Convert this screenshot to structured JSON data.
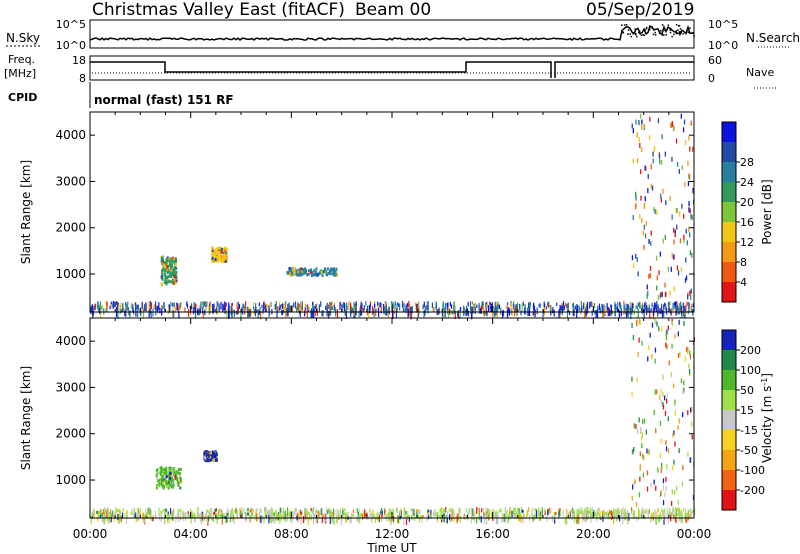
{
  "header": {
    "title": "Christmas Valley East (fitACF)",
    "beam": "Beam 00",
    "date": "05/Sep/2019"
  },
  "summary": {
    "nsky_label": "N.Sky",
    "nsearch_label": "N.Search",
    "count_ticks": [
      "10^5",
      "10^0"
    ],
    "freq_label": "Freq.",
    "freq_unit": "[MHz]",
    "freq_ticks": [
      "18",
      "8"
    ],
    "nave_label": "Nave",
    "nave_ticks": [
      "60",
      "0"
    ],
    "cpid_label": "CPID",
    "cpid_text": "normal (fast) 151 RF"
  },
  "axes": {
    "ylabel": "Slant Range [km]",
    "xlabel": "Time UT",
    "yticks": [
      "1000",
      "2000",
      "3000",
      "4000"
    ],
    "xticks": [
      "00:00",
      "04:00",
      "08:00",
      "12:00",
      "16:00",
      "20:00",
      "00:00"
    ]
  },
  "chart_data": [
    {
      "type": "heatmap",
      "title": "",
      "xlabel": "Time UT",
      "ylabel": "Slant Range [km]",
      "xlim": [
        0,
        24
      ],
      "ylim": [
        180,
        4500
      ],
      "colorbar": {
        "label": "Power [dB]",
        "ticks": [
          "4",
          "8",
          "12",
          "16",
          "20",
          "24",
          "28"
        ],
        "colors": [
          "#0a14dc",
          "#1f4aa6",
          "#2a7fa0",
          "#2f9a5a",
          "#7fc53a",
          "#f2c616",
          "#f59a16",
          "#ef5a10",
          "#e01616"
        ]
      },
      "features": [
        {
          "time": [
            0.0,
            24.0
          ],
          "range_km": [
            200,
            400
          ],
          "value": "ground scatter band"
        },
        {
          "time": [
            2.8,
            3.4
          ],
          "range_km": [
            800,
            1400
          ],
          "value": 14
        },
        {
          "time": [
            4.8,
            5.4
          ],
          "range_km": [
            1300,
            1600
          ],
          "value": 20
        },
        {
          "time": [
            7.8,
            9.8
          ],
          "range_km": [
            1000,
            1150
          ],
          "value": 10
        },
        {
          "time": [
            21.5,
            24.0
          ],
          "range_km": [
            500,
            4500
          ],
          "value": "sparse"
        }
      ]
    },
    {
      "type": "heatmap",
      "title": "",
      "xlabel": "Time UT",
      "ylabel": "Slant Range [km]",
      "xlim": [
        0,
        24
      ],
      "ylim": [
        180,
        4500
      ],
      "colorbar": {
        "label": "Velocity [m s^-1]",
        "ticks": [
          "200",
          "100",
          "50",
          "15",
          "-15",
          "-50",
          "-100",
          "-200"
        ],
        "colors": [
          "#1424b4",
          "#1f8a4a",
          "#4fb82a",
          "#9ee04a",
          "#c8c8c8",
          "#f4d020",
          "#f7a414",
          "#f06414",
          "#e01414"
        ]
      },
      "features": [
        {
          "time": [
            0.0,
            24.0
          ],
          "range_km": [
            200,
            400
          ],
          "value": 15
        },
        {
          "time": [
            4.5,
            5.0
          ],
          "range_km": [
            1450,
            1650
          ],
          "value": 200
        },
        {
          "time": [
            2.6,
            3.6
          ],
          "range_km": [
            850,
            1300
          ],
          "value": 50
        },
        {
          "time": [
            21.5,
            24.0
          ],
          "range_km": [
            500,
            4500
          ],
          "value": "sparse"
        }
      ]
    }
  ]
}
